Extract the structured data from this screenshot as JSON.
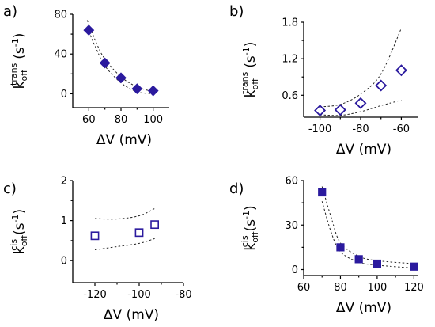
{
  "chart_data": [
    {
      "panel": "a)",
      "type": "scatter",
      "marker": "diamond-filled",
      "x": [
        60,
        70,
        80,
        90,
        100
      ],
      "y": [
        64,
        31,
        16,
        5,
        3
      ],
      "band_upper": [
        [
          59,
          74
        ],
        [
          65,
          50
        ],
        [
          70,
          35
        ],
        [
          80,
          17
        ],
        [
          90,
          7
        ],
        [
          100,
          2
        ]
      ],
      "band_lower": [
        [
          59,
          66
        ],
        [
          65,
          44
        ],
        [
          70,
          28
        ],
        [
          80,
          11
        ],
        [
          90,
          2
        ],
        [
          100,
          0
        ]
      ],
      "xlim": [
        50,
        110
      ],
      "ylim": [
        -14,
        80
      ],
      "xticks": [
        "60",
        "80",
        "100"
      ],
      "xtick_values": [
        60,
        80,
        100
      ],
      "yticks": [
        "0",
        "40",
        "80"
      ],
      "ytick_values": [
        0,
        40,
        80
      ],
      "xlabel_sym": "ΔV",
      "xlabel_unit": "(mV)",
      "ylabel_k": "k",
      "ylabel_sub": "off",
      "ylabel_sup": "trans",
      "ylabel_unit": "(s",
      "ylabel_exp": "-1",
      "ylabel_close": ")",
      "color": "#2b1a9e"
    },
    {
      "panel": "b)",
      "type": "scatter",
      "marker": "diamond-open",
      "x": [
        -100,
        -90,
        -80,
        -70,
        -60
      ],
      "y": [
        0.35,
        0.36,
        0.47,
        0.76,
        1.01
      ],
      "band_upper": [
        [
          -100,
          0.41
        ],
        [
          -90,
          0.45
        ],
        [
          -80,
          0.62
        ],
        [
          -70,
          0.95
        ],
        [
          -60,
          1.7
        ]
      ],
      "band_lower": [
        [
          -100,
          0.28
        ],
        [
          -90,
          0.27
        ],
        [
          -80,
          0.33
        ],
        [
          -70,
          0.43
        ],
        [
          -60,
          0.52
        ]
      ],
      "xlim": [
        -108,
        -52
      ],
      "ylim": [
        0.24,
        1.8
      ],
      "xticks": [
        "-100",
        "-80",
        "-60"
      ],
      "xtick_values": [
        -100,
        -80,
        -60
      ],
      "yticks": [
        "0.6",
        "1.2",
        "1.8"
      ],
      "ytick_values": [
        0.6,
        1.2,
        1.8
      ],
      "xlabel_sym": "ΔV",
      "xlabel_unit": "(mV)",
      "ylabel_k": "k",
      "ylabel_sub": "off",
      "ylabel_sup": "trans",
      "ylabel_unit": "(s",
      "ylabel_exp": "-1",
      "ylabel_close": ")",
      "color": "#2b1a9e"
    },
    {
      "panel": "c)",
      "type": "scatter",
      "marker": "square-open",
      "x": [
        -120,
        -100,
        -93
      ],
      "y": [
        0.62,
        0.7,
        0.9
      ],
      "band_upper": [
        [
          -120,
          1.05
        ],
        [
          -110,
          1.04
        ],
        [
          -100,
          1.12
        ],
        [
          -93,
          1.3
        ]
      ],
      "band_lower": [
        [
          -120,
          0.27
        ],
        [
          -110,
          0.35
        ],
        [
          -100,
          0.43
        ],
        [
          -93,
          0.55
        ]
      ],
      "xlim": [
        -130,
        -80
      ],
      "ylim": [
        -0.55,
        2
      ],
      "xticks": [
        "-120",
        "-100",
        "-80"
      ],
      "xtick_values": [
        -120,
        -100,
        -80
      ],
      "yticks": [
        "0",
        "1",
        "2"
      ],
      "ytick_values": [
        0,
        1,
        2
      ],
      "xlabel_sym": "ΔV",
      "xlabel_unit": "(mV)",
      "ylabel_k": "k",
      "ylabel_sub": "off",
      "ylabel_sup": "cis",
      "ylabel_unit": "(s",
      "ylabel_exp": "-1",
      "ylabel_close": ")",
      "color": "#2b1a9e"
    },
    {
      "panel": "d)",
      "type": "scatter",
      "marker": "square-filled",
      "x": [
        70,
        80,
        90,
        100,
        120
      ],
      "y": [
        52,
        15,
        7,
        4,
        2
      ],
      "band_upper": [
        [
          70,
          56
        ],
        [
          75,
          35
        ],
        [
          80,
          18
        ],
        [
          90,
          9
        ],
        [
          100,
          6
        ],
        [
          120,
          4
        ]
      ],
      "band_lower": [
        [
          70,
          46
        ],
        [
          75,
          25
        ],
        [
          80,
          12
        ],
        [
          90,
          5
        ],
        [
          100,
          3
        ],
        [
          120,
          1
        ]
      ],
      "xlim": [
        60,
        122
      ],
      "ylim": [
        -4,
        60
      ],
      "xticks": [
        "60",
        "80",
        "100",
        "120"
      ],
      "xtick_values": [
        60,
        80,
        100,
        120
      ],
      "yticks": [
        "0",
        "30",
        "60"
      ],
      "ytick_values": [
        0,
        30,
        60
      ],
      "xlabel_sym": "ΔV",
      "xlabel_unit": "(mV)",
      "ylabel_k": "k",
      "ylabel_sub": "off",
      "ylabel_sup": "cis",
      "ylabel_unit": "(s",
      "ylabel_exp": "-1",
      "ylabel_close": ")",
      "color": "#2b1a9e"
    }
  ]
}
